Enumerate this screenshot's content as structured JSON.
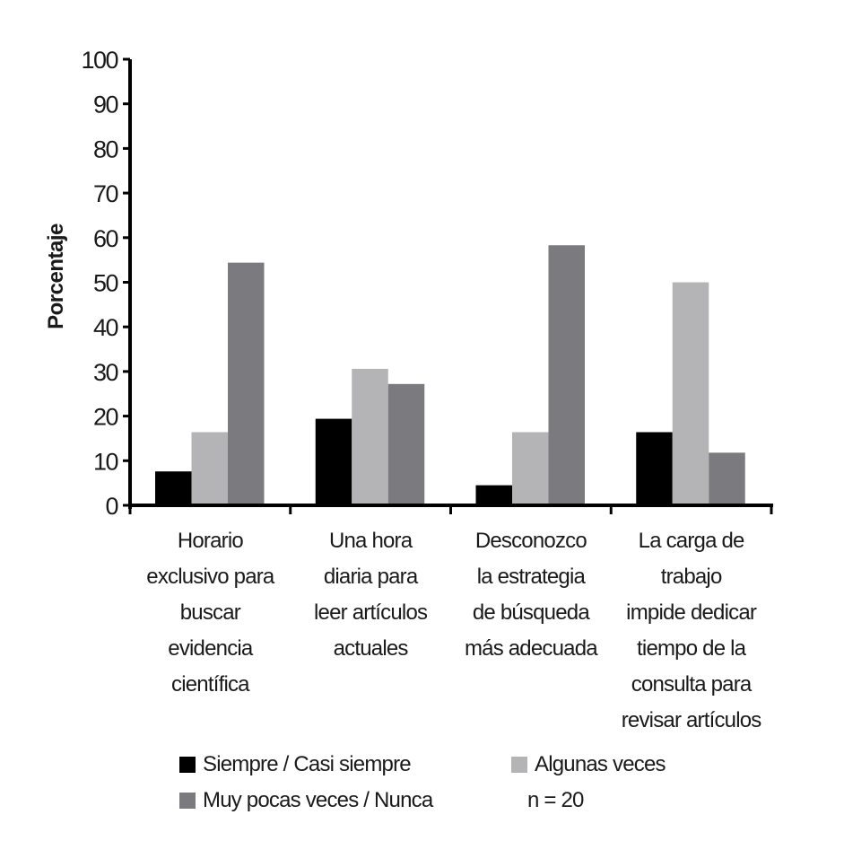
{
  "chart_data": {
    "type": "bar",
    "title": "",
    "xlabel": "",
    "ylabel": "Porcentaje",
    "ylim": [
      0,
      100
    ],
    "yticks": [
      0,
      10,
      20,
      30,
      40,
      50,
      60,
      70,
      80,
      90,
      100
    ],
    "grid": false,
    "categories": [
      [
        "Horario",
        "exclusivo para",
        "buscar",
        "evidencia",
        "científica"
      ],
      [
        "Una hora",
        "diaria para",
        "leer artículos",
        "actuales"
      ],
      [
        "Desconozco",
        "la estrategia",
        "de búsqueda",
        "más adecuada"
      ],
      [
        "La carga de",
        "trabajo",
        "impide dedicar",
        "tiempo de la",
        "consulta para",
        "revisar artículos"
      ]
    ],
    "series": [
      {
        "name": "Siempre / Casi siempre",
        "color": "#000000",
        "values": [
          7.6,
          19.4,
          4.5,
          16.4
        ]
      },
      {
        "name": "Algunas veces",
        "color": "#b4b4b6",
        "values": [
          16.4,
          30.6,
          16.4,
          50.0
        ]
      },
      {
        "name": "Muy pocas veces / Nunca",
        "color": "#7b7a7f",
        "values": [
          54.4,
          27.2,
          58.3,
          11.8
        ]
      }
    ],
    "legend_position": "bottom",
    "annotation": "n = 20"
  }
}
